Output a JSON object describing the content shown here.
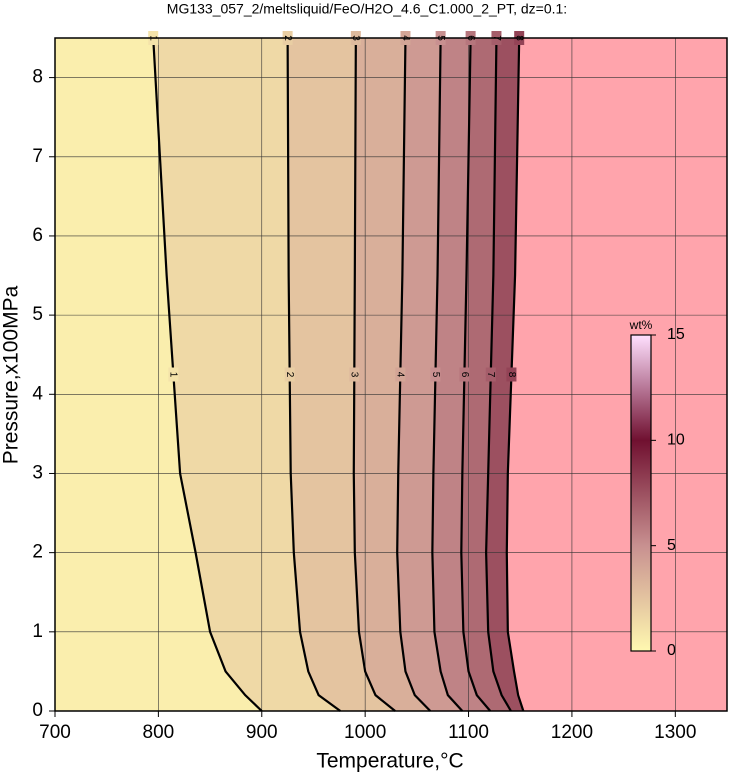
{
  "chart_data": {
    "type": "contour",
    "title": "MG133_057_2/meltsliquid/FeO/H2O_4.6_C1.000_2_PT, dz=0.1:",
    "x_label": "Temperature,°C",
    "y_label": "Pressure,x100MPa",
    "xlim": [
      700,
      1350
    ],
    "xticks": [
      700,
      800,
      900,
      1000,
      1100,
      1200,
      1300
    ],
    "ylim": [
      0,
      8.5
    ],
    "yticks": [
      0,
      1,
      2,
      3,
      4,
      5,
      6,
      7,
      8
    ],
    "grid": true,
    "background": "#ffa4ac",
    "y": [
      8.5,
      5.5,
      3,
      2,
      1,
      0.5,
      0.2,
      0
    ],
    "contours": [
      {
        "level": 1,
        "x": [
          795,
          808,
          821,
          836,
          850,
          865,
          884,
          900
        ]
      },
      {
        "level": 2,
        "x": [
          925,
          926,
          928,
          931,
          937,
          945,
          955,
          976
        ]
      },
      {
        "level": 3,
        "x": [
          991,
          990,
          989,
          990,
          994,
          1000,
          1010,
          1029
        ]
      },
      {
        "level": 4,
        "x": [
          1039,
          1036,
          1032,
          1031,
          1034,
          1039,
          1048,
          1063
        ]
      },
      {
        "level": 5,
        "x": [
          1073,
          1070,
          1066,
          1065,
          1067,
          1073,
          1080,
          1094
        ]
      },
      {
        "level": 6,
        "x": [
          1102,
          1098,
          1094,
          1093,
          1095,
          1100,
          1108,
          1121
        ]
      },
      {
        "level": 7,
        "x": [
          1127,
          1124,
          1119,
          1117,
          1119,
          1124,
          1132,
          1141
        ]
      },
      {
        "level": 8,
        "x": [
          1149,
          1145,
          1138,
          1137,
          1138,
          1144,
          1148,
          1153
        ]
      }
    ],
    "colorbar": {
      "label": "wt%",
      "lim": [
        0,
        15
      ],
      "ticks": [
        0,
        5,
        10,
        15
      ],
      "colors": [
        "#fff8b0",
        "#c89090",
        "#701030",
        "#ffe0ff"
      ]
    }
  }
}
